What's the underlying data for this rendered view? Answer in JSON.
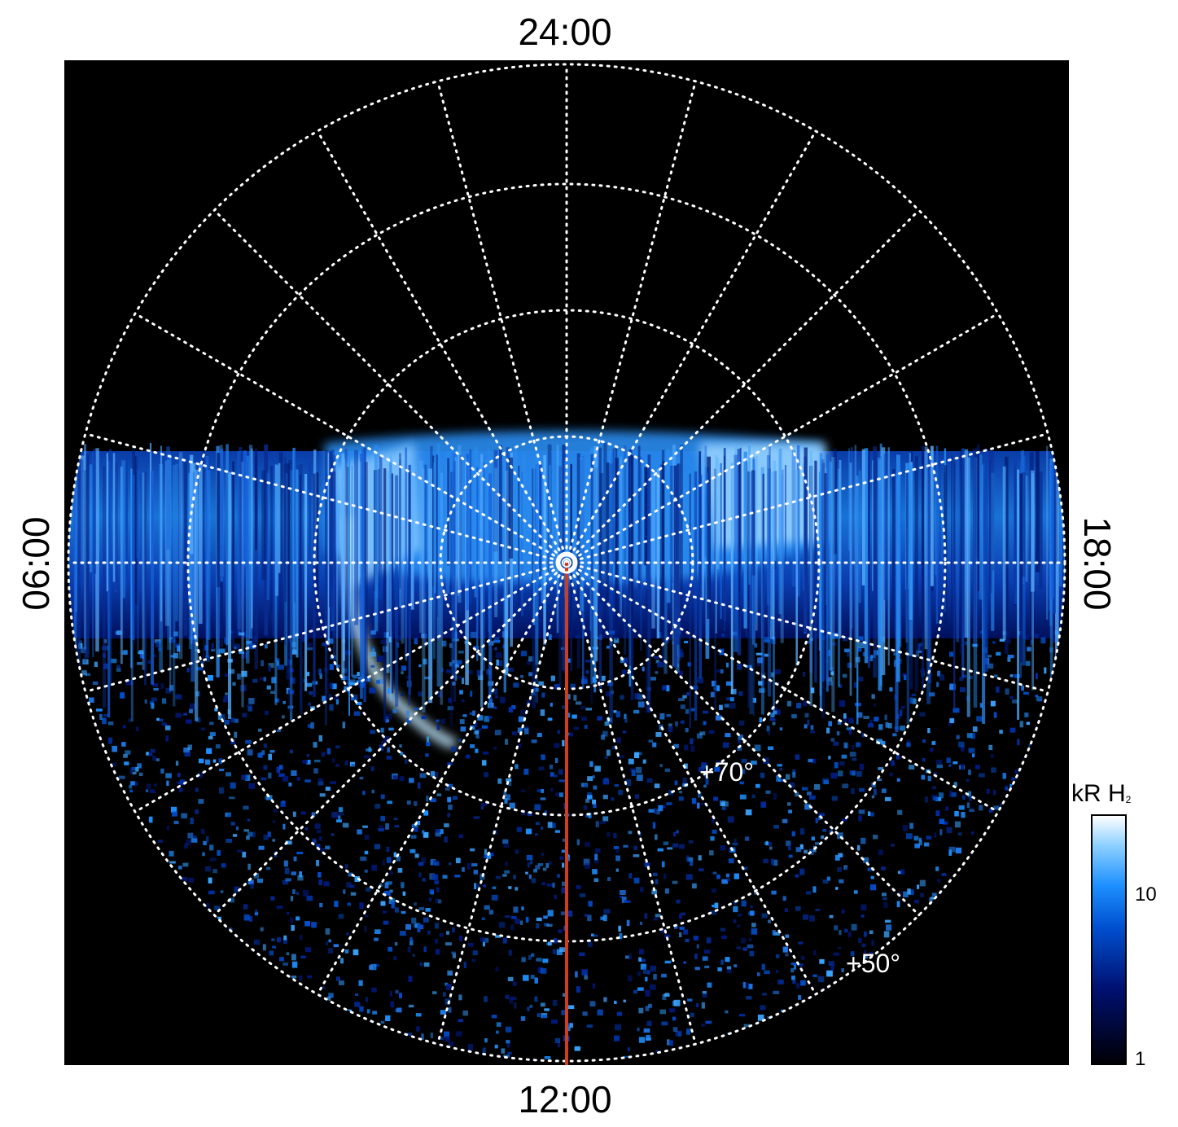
{
  "local_time_labels": {
    "top": "24:00",
    "bottom": "12:00",
    "left": "06:00",
    "right": "18:00"
  },
  "latitude_labels": {
    "inner": "+70°",
    "outer": "+50°"
  },
  "colorbar": {
    "title_main": "kR H",
    "title_subscript": "2",
    "tick_labels": [
      "10",
      "1"
    ],
    "scale": "log",
    "range": [
      1,
      25
    ],
    "colors": [
      "#000005",
      "#001070",
      "#0050d0",
      "#1e90ff",
      "#8cd0ff",
      "#ffffff"
    ]
  },
  "colors": {
    "background": "#000000",
    "grid": "#ffffff",
    "meridian_line": "#d23c1e"
  }
}
